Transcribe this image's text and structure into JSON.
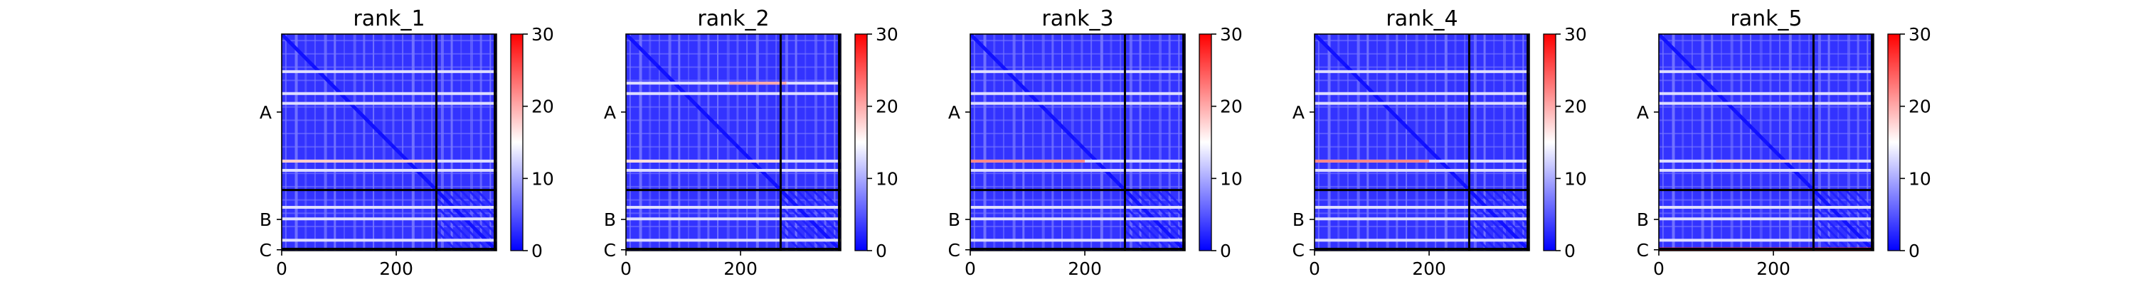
{
  "chart_data": [
    {
      "type": "heatmap",
      "title": "rank_1",
      "xticks": [
        "0",
        "200"
      ],
      "yticks": [
        "A",
        "B",
        "C"
      ],
      "colorbar": {
        "ticks": [
          "0",
          "10",
          "20",
          "30"
        ],
        "range": [
          0,
          30
        ],
        "colormap": "bwr"
      },
      "segments": [
        "A",
        "B",
        "C"
      ],
      "segment_boundaries": [
        270,
        372
      ],
      "n_residues": 375,
      "bright_rows": [
        65,
        103,
        120,
        220,
        236,
        300,
        320,
        357
      ],
      "hot_rows": [
        {
          "row": 220,
          "x_range": [
            0,
            270
          ],
          "value": 18
        }
      ]
    },
    {
      "type": "heatmap",
      "title": "rank_2",
      "xticks": [
        "0",
        "200"
      ],
      "yticks": [
        "A",
        "B",
        "C"
      ],
      "colorbar": {
        "ticks": [
          "0",
          "10",
          "20",
          "30"
        ],
        "range": [
          0,
          30
        ],
        "colormap": "bwr"
      },
      "segments": [
        "A",
        "B",
        "C"
      ],
      "segment_boundaries": [
        270,
        372
      ],
      "n_residues": 375,
      "bright_rows": [
        85,
        103,
        220,
        236,
        300,
        320,
        357
      ],
      "hot_rows": [
        {
          "row": 85,
          "x_range": [
            180,
            280
          ],
          "value": 20
        },
        {
          "row": 220,
          "x_range": [
            0,
            270
          ],
          "value": 17
        }
      ]
    },
    {
      "type": "heatmap",
      "title": "rank_3",
      "xticks": [
        "0",
        "200"
      ],
      "yticks": [
        "A",
        "B",
        "C"
      ],
      "colorbar": {
        "ticks": [
          "0",
          "10",
          "20",
          "30"
        ],
        "range": [
          0,
          30
        ],
        "colormap": "bwr"
      },
      "segments": [
        "A",
        "B",
        "C"
      ],
      "segment_boundaries": [
        270,
        372
      ],
      "n_residues": 375,
      "bright_rows": [
        65,
        103,
        120,
        220,
        236,
        300,
        320,
        357
      ],
      "hot_rows": [
        {
          "row": 220,
          "x_range": [
            0,
            200
          ],
          "value": 22
        }
      ]
    },
    {
      "type": "heatmap",
      "title": "rank_4",
      "xticks": [
        "0",
        "200"
      ],
      "yticks": [
        "A",
        "B",
        "C"
      ],
      "colorbar": {
        "ticks": [
          "0",
          "10",
          "20",
          "30"
        ],
        "range": [
          0,
          30
        ],
        "colormap": "bwr"
      },
      "segments": [
        "A",
        "B",
        "C"
      ],
      "segment_boundaries": [
        270,
        372
      ],
      "n_residues": 375,
      "bright_rows": [
        65,
        103,
        120,
        220,
        236,
        300,
        320,
        357
      ],
      "hot_rows": [
        {
          "row": 220,
          "x_range": [
            0,
            200
          ],
          "value": 22
        }
      ]
    },
    {
      "type": "heatmap",
      "title": "rank_5",
      "xticks": [
        "0",
        "200"
      ],
      "yticks": [
        "A",
        "B",
        "C"
      ],
      "colorbar": {
        "ticks": [
          "0",
          "10",
          "20",
          "30"
        ],
        "range": [
          0,
          30
        ],
        "colormap": "bwr"
      },
      "segments": [
        "A",
        "B",
        "C"
      ],
      "segment_boundaries": [
        270,
        372
      ],
      "n_residues": 375,
      "bright_rows": [
        65,
        103,
        120,
        220,
        236,
        300,
        320,
        357
      ],
      "hot_rows": [
        {
          "row": 220,
          "x_range": [
            100,
            270
          ],
          "value": 18
        },
        {
          "row": 372,
          "x_range": [
            0,
            375
          ],
          "value": 28
        }
      ]
    }
  ]
}
